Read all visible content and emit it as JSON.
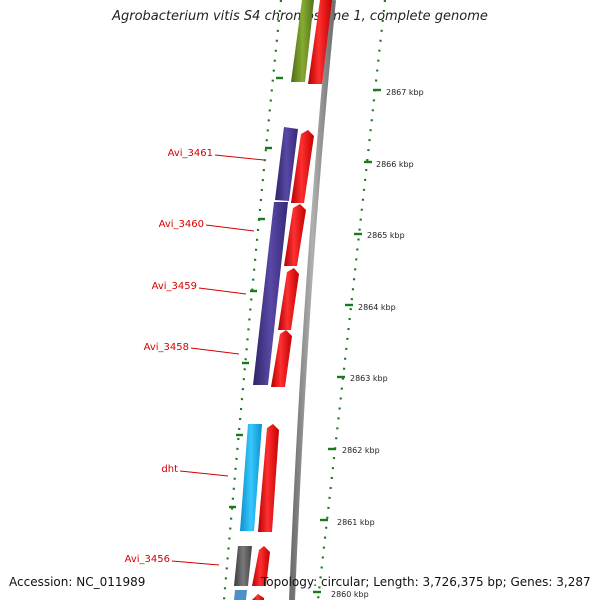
{
  "title": "Agrobacterium vitis S4 chromosome 1, complete genome",
  "footer": {
    "accession": "Accession: NC_011989",
    "summary": "Topology: circular; Length: 3,726,375 bp; Genes: 3,287"
  },
  "scale_labels": [
    "2867 kbp",
    "2866 kbp",
    "2865 kbp",
    "2864 kbp",
    "2863 kbp",
    "2862 kbp",
    "2861 kbp",
    "2860 kbp"
  ],
  "gene_labels": [
    "Avi_3461",
    "Avi_3460",
    "Avi_3459",
    "Avi_3458",
    "dht",
    "Avi_3456"
  ],
  "colors": {
    "label_red": "#d40000",
    "feature_red": "#ee1111",
    "feature_purple": "#4b3a8e",
    "feature_cyan": "#22b4ee",
    "feature_green": "#6b8f23",
    "feature_gray": "#555555",
    "backbone": "#8a8a8a",
    "dots_green": "#1a7a1a"
  }
}
